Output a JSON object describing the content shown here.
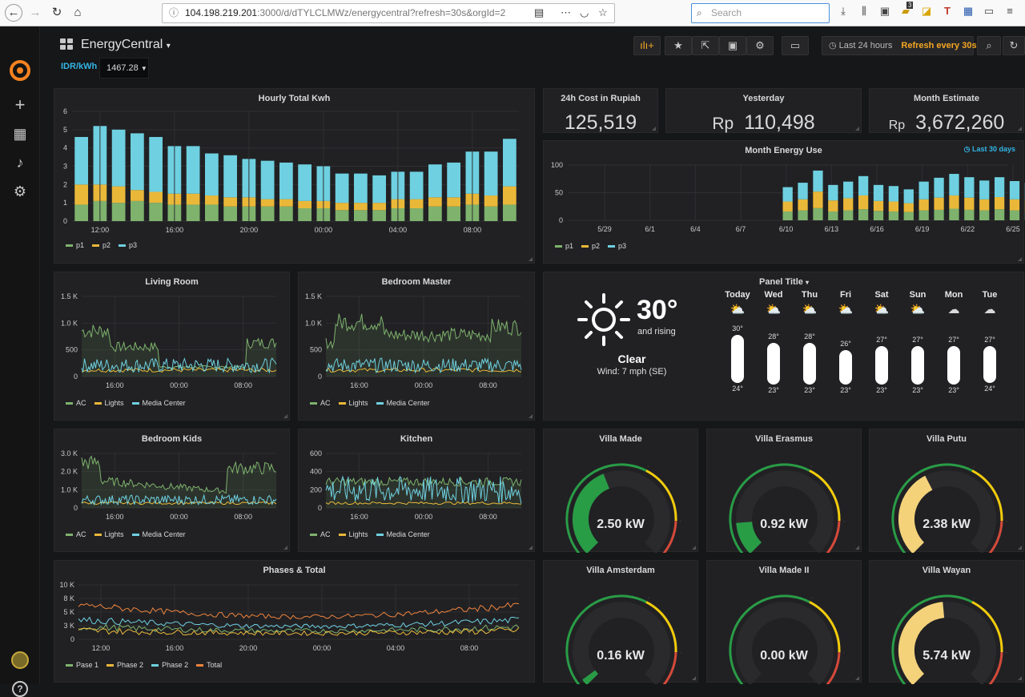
{
  "browser": {
    "url_host": "104.198.219.201",
    "url_rest": ":3000/d/dTYLCLMWz/energycentral?refresh=30s&orgId=2",
    "search_placeholder": "Search",
    "badge": "3"
  },
  "dashboard": {
    "title": "EnergyCentral",
    "time_range": "Last 24 hours",
    "refresh": "Refresh every 30s",
    "variable_label": "IDR/kWh",
    "variable_value": "1467.28"
  },
  "stats": [
    {
      "title": "24h Cost in Rupiah",
      "prefix": "",
      "value": "125,519"
    },
    {
      "title": "Yesterday",
      "prefix": "Rp",
      "value": "110,498"
    },
    {
      "title": "Month Estimate",
      "prefix": "Rp",
      "value": "3,672,260"
    }
  ],
  "colors": {
    "p1": "#7eb26d",
    "p2": "#eab839",
    "p3": "#6ed0e0",
    "total": "#ef843c",
    "gauge_green": "#299c46",
    "gauge_yellow": "#f2cc0c",
    "gauge_red": "#d44a3a"
  },
  "hourly": {
    "title": "Hourly Total Kwh",
    "ylim": [
      0,
      6
    ],
    "yticks": [
      "0",
      "1",
      "2",
      "3",
      "4",
      "5",
      "6"
    ],
    "xticks": [
      "12:00",
      "16:00",
      "20:00",
      "00:00",
      "04:00",
      "08:00"
    ],
    "series": [
      {
        "name": "p1",
        "values": [
          0.9,
          1.1,
          1.0,
          1.1,
          1.0,
          0.9,
          0.9,
          0.9,
          0.8,
          0.8,
          0.8,
          0.8,
          0.7,
          0.7,
          0.6,
          0.6,
          0.6,
          0.7,
          0.7,
          0.8,
          0.8,
          0.9,
          0.8,
          0.9
        ]
      },
      {
        "name": "p2",
        "values": [
          1.1,
          0.9,
          0.9,
          0.6,
          0.6,
          0.6,
          0.6,
          0.5,
          0.5,
          0.5,
          0.4,
          0.4,
          0.4,
          0.4,
          0.4,
          0.4,
          0.4,
          0.5,
          0.5,
          0.5,
          0.5,
          0.6,
          0.6,
          1.0
        ]
      },
      {
        "name": "p3",
        "values": [
          2.6,
          3.2,
          3.1,
          3.1,
          3.0,
          2.6,
          2.6,
          2.3,
          2.3,
          2.1,
          2.1,
          2.0,
          2.0,
          1.9,
          1.6,
          1.6,
          1.5,
          1.5,
          1.5,
          1.8,
          1.9,
          2.3,
          2.4,
          2.6
        ]
      }
    ]
  },
  "month": {
    "title": "Month Energy Use",
    "link": "Last 30 days",
    "ylim": [
      0,
      100
    ],
    "yticks": [
      "0",
      "50",
      "100"
    ],
    "xticks": [
      "5/29",
      "6/1",
      "6/4",
      "6/7",
      "6/10",
      "6/13",
      "6/16",
      "6/19",
      "6/22",
      "6/25"
    ],
    "series": [
      {
        "name": "p1",
        "values": [
          16,
          18,
          22,
          16,
          18,
          20,
          17,
          16,
          15,
          18,
          19,
          21,
          19,
          18,
          20,
          18,
          17,
          19,
          19,
          20
        ]
      },
      {
        "name": "p2",
        "values": [
          18,
          20,
          30,
          20,
          22,
          25,
          18,
          18,
          16,
          20,
          22,
          24,
          22,
          20,
          22,
          20,
          19,
          20,
          20,
          21
        ]
      },
      {
        "name": "p3",
        "values": [
          26,
          30,
          38,
          28,
          30,
          35,
          29,
          28,
          25,
          32,
          36,
          39,
          37,
          34,
          36,
          33,
          32,
          34,
          33,
          41
        ]
      }
    ]
  },
  "small_charts": [
    {
      "title": "Living Room",
      "yticks": [
        "0",
        "500",
        "1.0 K",
        "1.5 K"
      ],
      "xticks": [
        "16:00",
        "00:00",
        "08:00"
      ],
      "legend": [
        "AC",
        "Lights",
        "Media Center"
      ]
    },
    {
      "title": "Bedroom Master",
      "yticks": [
        "0",
        "500",
        "1.0 K",
        "1.5 K"
      ],
      "xticks": [
        "16:00",
        "00:00",
        "08:00"
      ],
      "legend": [
        "AC",
        "Lights",
        "Media Center"
      ]
    },
    {
      "title": "Bedroom Kids",
      "yticks": [
        "0",
        "1.0 K",
        "2.0 K",
        "3.0 K"
      ],
      "xticks": [
        "16:00",
        "00:00",
        "08:00"
      ],
      "legend": [
        "AC",
        "Lights",
        "Media Center"
      ]
    },
    {
      "title": "Kitchen",
      "yticks": [
        "0",
        "200",
        "400",
        "600"
      ],
      "xticks": [
        "16:00",
        "00:00",
        "08:00"
      ],
      "legend": [
        "AC",
        "Lights",
        "Media Center"
      ]
    }
  ],
  "phases": {
    "title": "Phases & Total",
    "yticks": [
      "0",
      "3 K",
      "5 K",
      "8 K",
      "10 K"
    ],
    "xticks": [
      "12:00",
      "16:00",
      "20:00",
      "00:00",
      "04:00",
      "08:00"
    ],
    "legend": [
      "Pase 1",
      "Phase 2",
      "Phase 2",
      "Total"
    ]
  },
  "weather": {
    "title": "Panel Title",
    "temp": "30°",
    "trend": "and rising",
    "condition": "Clear",
    "wind": "Wind: 7 mph (SE)",
    "days": [
      {
        "day": "Today",
        "high": 30,
        "low": 24,
        "icon": "sun-cloud-icon"
      },
      {
        "day": "Wed",
        "high": 28,
        "low": 23,
        "icon": "sun-cloud-icon"
      },
      {
        "day": "Thu",
        "high": 28,
        "low": 23,
        "icon": "sun-cloud-icon"
      },
      {
        "day": "Fri",
        "high": 26,
        "low": 23,
        "icon": "sun-cloud-icon"
      },
      {
        "day": "Sat",
        "high": 27,
        "low": 23,
        "icon": "sun-cloud-icon"
      },
      {
        "day": "Sun",
        "high": 27,
        "low": 23,
        "icon": "sun-cloud-icon"
      },
      {
        "day": "Mon",
        "high": 27,
        "low": 23,
        "icon": "cloud-icon"
      },
      {
        "day": "Tue",
        "high": 27,
        "low": 24,
        "icon": "cloud-icon"
      }
    ]
  },
  "gauges": [
    {
      "title": "Villa Made",
      "value": "2.50 kW",
      "fraction": 0.42,
      "zone": "green"
    },
    {
      "title": "Villa Erasmus",
      "value": "0.92 kW",
      "fraction": 0.15,
      "zone": "green"
    },
    {
      "title": "Villa Putu",
      "value": "2.38 kW",
      "fraction": 0.4,
      "zone": "yellow"
    },
    {
      "title": "Villa Amsterdam",
      "value": "0.16 kW",
      "fraction": 0.03,
      "zone": "green"
    },
    {
      "title": "Villa Made II",
      "value": "0.00 kW",
      "fraction": 0.0,
      "zone": "green"
    },
    {
      "title": "Villa Wayan",
      "value": "5.74 kW",
      "fraction": 0.48,
      "zone": "yellow"
    }
  ]
}
